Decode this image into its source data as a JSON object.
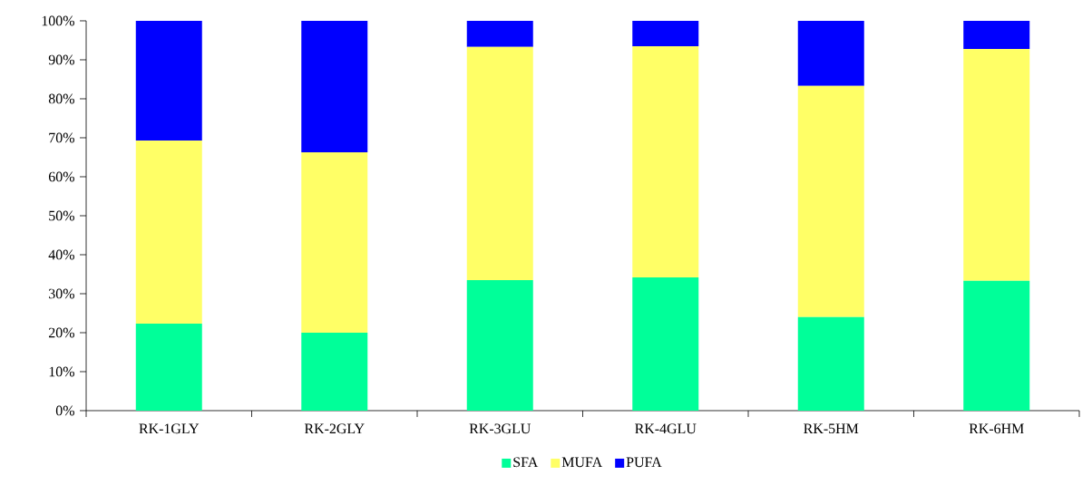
{
  "chart_data": {
    "type": "bar",
    "stacked": true,
    "categories": [
      "RK-1GLY",
      "RK-2GLY",
      "RK-3GLU",
      "RK-4GLU",
      "RK-5HM",
      "RK-6HM"
    ],
    "series": [
      {
        "name": "SFA",
        "color": "#00ff99",
        "values": [
          22.3,
          20.0,
          33.5,
          34.2,
          24.0,
          33.3
        ]
      },
      {
        "name": "MUFA",
        "color": "#ffff66",
        "values": [
          47.0,
          46.3,
          59.8,
          59.3,
          59.3,
          59.5
        ]
      },
      {
        "name": "PUFA",
        "color": "#0000ff",
        "values": [
          30.7,
          33.7,
          6.7,
          6.5,
          16.7,
          7.2
        ]
      }
    ],
    "ylim": [
      0,
      100
    ],
    "yticks": [
      {
        "value": 0,
        "label": "0%"
      },
      {
        "value": 10,
        "label": "10%"
      },
      {
        "value": 20,
        "label": "20%"
      },
      {
        "value": 30,
        "label": "30%"
      },
      {
        "value": 40,
        "label": "40%"
      },
      {
        "value": 50,
        "label": "50%"
      },
      {
        "value": 60,
        "label": "60%"
      },
      {
        "value": 70,
        "label": "70%"
      },
      {
        "value": 80,
        "label": "80%"
      },
      {
        "value": 90,
        "label": "90%"
      },
      {
        "value": 100,
        "label": "100%"
      }
    ],
    "legend": "bottom"
  }
}
